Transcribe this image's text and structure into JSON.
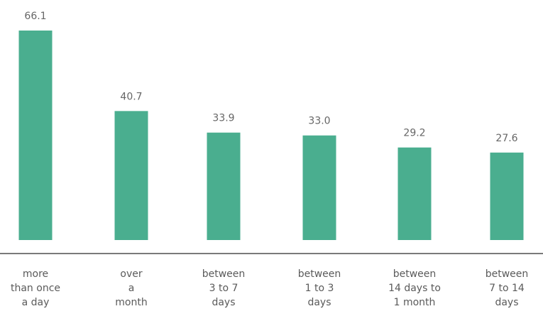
{
  "chart_data": {
    "type": "bar",
    "title": "",
    "xlabel": "",
    "ylabel": "",
    "categories": [
      [
        "more",
        "than once",
        "a day"
      ],
      [
        "over",
        "a",
        "month"
      ],
      [
        "between",
        "3 to 7",
        "days"
      ],
      [
        "between",
        "1 to 3",
        "days"
      ],
      [
        "between",
        "14 days to",
        "1 month"
      ],
      [
        "between",
        "7 to 14",
        "days"
      ]
    ],
    "values": [
      66.1,
      40.7,
      33.9,
      33.0,
      29.2,
      27.6
    ],
    "value_labels": [
      "66.1",
      "40.7",
      "33.9",
      "33.0",
      "29.2",
      "27.6"
    ],
    "ylim": [
      0,
      66.1
    ],
    "grid": false,
    "bar_color": "#4aae8f",
    "axis_color": "#7a7a7a"
  }
}
